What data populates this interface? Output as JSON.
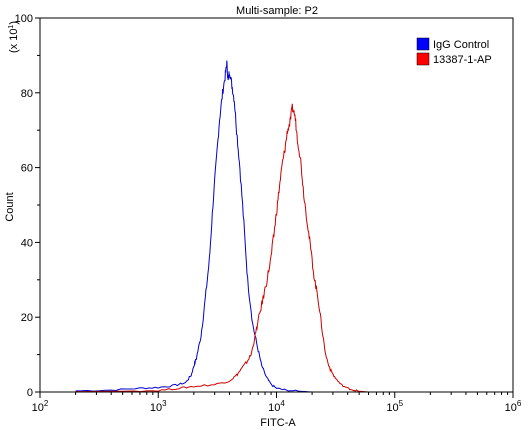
{
  "chart_data": {
    "type": "line",
    "title": "Multi-sample: P2",
    "xlabel": "FITC-A",
    "ylabel": "Count",
    "y_multiplier_label": "(x 10",
    "y_multiplier_exp": "1",
    "x_scale": "log",
    "xlim": [
      100,
      1000000
    ],
    "ylim": [
      0,
      100
    ],
    "x_ticks": [
      {
        "base": "10",
        "exp": "2",
        "value": 100
      },
      {
        "base": "10",
        "exp": "3",
        "value": 1000
      },
      {
        "base": "10",
        "exp": "4",
        "value": 10000
      },
      {
        "base": "10",
        "exp": "5",
        "value": 100000
      },
      {
        "base": "10",
        "exp": "6",
        "value": 1000000
      }
    ],
    "y_ticks": [
      "0",
      "20",
      "40",
      "60",
      "80",
      "100"
    ],
    "grid": false,
    "legend_position": "top-right",
    "series": [
      {
        "name": "IgG Control",
        "color": "#0000cc",
        "legend_color": "#0000ff",
        "points": [
          [
            200,
            0.3
          ],
          [
            400,
            0.5
          ],
          [
            700,
            1.0
          ],
          [
            1000,
            1.2
          ],
          [
            1400,
            1.8
          ],
          [
            1700,
            2.5
          ],
          [
            1900,
            4.5
          ],
          [
            2000,
            7
          ],
          [
            2100,
            9
          ],
          [
            2300,
            15
          ],
          [
            2500,
            25
          ],
          [
            2700,
            35
          ],
          [
            2900,
            50
          ],
          [
            3100,
            62
          ],
          [
            3300,
            73
          ],
          [
            3500,
            80
          ],
          [
            3700,
            85
          ],
          [
            3800,
            88
          ],
          [
            3900,
            83
          ],
          [
            4000,
            86
          ],
          [
            4200,
            82
          ],
          [
            4400,
            78
          ],
          [
            4600,
            70
          ],
          [
            4900,
            60
          ],
          [
            5300,
            45
          ],
          [
            5700,
            30
          ],
          [
            6300,
            18
          ],
          [
            6900,
            12
          ],
          [
            7500,
            7
          ],
          [
            8200,
            4
          ],
          [
            9000,
            2
          ],
          [
            10000,
            1
          ],
          [
            12000,
            0.5
          ],
          [
            16000,
            0.2
          ],
          [
            20000,
            0
          ]
        ]
      },
      {
        "name": "13387-1-AP",
        "color": "#cc0000",
        "legend_color": "#ff0000",
        "points": [
          [
            200,
            0.1
          ],
          [
            500,
            0.2
          ],
          [
            1000,
            0.4
          ],
          [
            1500,
            1.0
          ],
          [
            2000,
            1.5
          ],
          [
            3000,
            2.0
          ],
          [
            4000,
            3.0
          ],
          [
            4600,
            4.5
          ],
          [
            5000,
            6.0
          ],
          [
            5600,
            8.0
          ],
          [
            6100,
            10.0
          ],
          [
            6600,
            15.0
          ],
          [
            7100,
            20.0
          ],
          [
            7700,
            25.0
          ],
          [
            8300,
            30.0
          ],
          [
            8900,
            35.0
          ],
          [
            9500,
            42.0
          ],
          [
            10000,
            48.0
          ],
          [
            10600,
            55.0
          ],
          [
            11200,
            61.0
          ],
          [
            11800,
            65.0
          ],
          [
            12400,
            70.0
          ],
          [
            13000,
            72.0
          ],
          [
            13600,
            76.0
          ],
          [
            14300,
            74.0
          ],
          [
            15000,
            68.0
          ],
          [
            16000,
            62.0
          ],
          [
            17000,
            53.0
          ],
          [
            18300,
            45.0
          ],
          [
            19500,
            38.0
          ],
          [
            21000,
            30.0
          ],
          [
            22500,
            25.0
          ],
          [
            24000,
            18.0
          ],
          [
            26000,
            10.0
          ],
          [
            28500,
            6.0
          ],
          [
            31000,
            4.0
          ],
          [
            35000,
            2.0
          ],
          [
            40000,
            1.0
          ],
          [
            45000,
            0.5
          ],
          [
            50000,
            0.2
          ],
          [
            60000,
            0
          ]
        ]
      }
    ]
  }
}
